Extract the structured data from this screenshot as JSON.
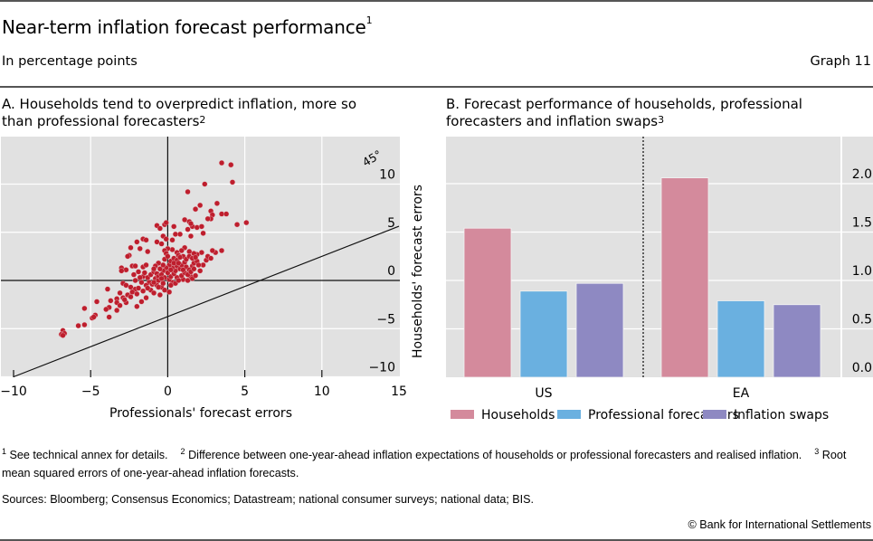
{
  "header": {
    "title": "Near-term inflation forecast performance",
    "title_footnote": "1",
    "subtitle": "In percentage points",
    "graph_number": "Graph 11"
  },
  "panel_a": {
    "title_line1": "A. Households tend to overpredict inflation, more so",
    "title_line2": "than professional forecasters",
    "title_footnote": "2"
  },
  "panel_b": {
    "title_line1": "B. Forecast performance of households, professional",
    "title_line2": "forecasters and inflation swaps",
    "title_footnote": "3"
  },
  "chart_data": [
    {
      "type": "scatter",
      "title": "A. Households tend to overpredict inflation, more so than professional forecasters",
      "xlabel": "Professionals' forecast errors",
      "ylabel": "Households' forecast errors",
      "xlim": [
        -10,
        15
      ],
      "ylim": [
        -10,
        15
      ],
      "x_ticks": [
        "−10",
        "−5",
        "0",
        "5",
        "10",
        "15"
      ],
      "y_ticks": [
        "−10",
        "−5",
        "0",
        "5",
        "10"
      ],
      "y_tick_values": [
        -10,
        -5,
        0,
        5,
        10
      ],
      "x_tick_values": [
        -10,
        -5,
        0,
        5,
        10,
        15
      ],
      "reference_line": {
        "label": "45°",
        "slope": 1,
        "intercept": 0
      },
      "grid": true,
      "marker_color": "#BE1E2D",
      "points": [
        [
          3.5,
          12.2
        ],
        [
          4.1,
          12.0
        ],
        [
          4.2,
          10.2
        ],
        [
          2.4,
          10.0
        ],
        [
          1.3,
          9.2
        ],
        [
          3.2,
          8.0
        ],
        [
          2.1,
          7.8
        ],
        [
          1.8,
          7.4
        ],
        [
          2.8,
          7.2
        ],
        [
          2.9,
          6.8
        ],
        [
          3.5,
          6.9
        ],
        [
          3.8,
          6.9
        ],
        [
          2.8,
          6.4
        ],
        [
          4.5,
          5.8
        ],
        [
          5.1,
          6.0
        ],
        [
          1.1,
          6.3
        ],
        [
          1.4,
          6.1
        ],
        [
          1.6,
          5.6
        ],
        [
          1.9,
          5.5
        ],
        [
          1.3,
          5.3
        ],
        [
          2.2,
          5.6
        ],
        [
          2.6,
          6.4
        ],
        [
          1.5,
          5.9
        ],
        [
          2.3,
          4.9
        ],
        [
          1.5,
          4.6
        ],
        [
          -0.7,
          5.7
        ],
        [
          -0.5,
          5.4
        ],
        [
          -0.2,
          5.8
        ],
        [
          -0.1,
          6.0
        ],
        [
          0.4,
          5.6
        ],
        [
          0.5,
          4.8
        ],
        [
          0.8,
          4.8
        ],
        [
          -0.3,
          4.6
        ],
        [
          -0.1,
          4.3
        ],
        [
          0.3,
          4.2
        ],
        [
          -1.6,
          4.3
        ],
        [
          -1.4,
          4.2
        ],
        [
          -2.0,
          4.0
        ],
        [
          -2.4,
          3.4
        ],
        [
          -1.8,
          3.3
        ],
        [
          -0.7,
          4.0
        ],
        [
          -0.4,
          3.8
        ],
        [
          -1.3,
          3.0
        ],
        [
          -2.5,
          2.6
        ],
        [
          -2.6,
          2.5
        ],
        [
          -3.0,
          1.3
        ],
        [
          -2.7,
          1.1
        ],
        [
          -2.3,
          1.5
        ],
        [
          -2.1,
          1.5
        ],
        [
          -1.6,
          1.4
        ],
        [
          -1.4,
          1.6
        ],
        [
          -1.9,
          0.9
        ],
        [
          -2.2,
          0.6
        ],
        [
          -3.0,
          1.0
        ],
        [
          -1.6,
          0.4
        ],
        [
          -1.3,
          0.3
        ],
        [
          -1.1,
          0.6
        ],
        [
          -0.9,
          0.9
        ],
        [
          -0.7,
          0.7
        ],
        [
          -0.8,
          0.2
        ],
        [
          -0.6,
          0.4
        ],
        [
          -1.2,
          -0.2
        ],
        [
          -1.4,
          -0.5
        ],
        [
          -1.0,
          -0.4
        ],
        [
          -2.9,
          -0.3
        ],
        [
          -2.7,
          -0.5
        ],
        [
          -2.4,
          -0.7
        ],
        [
          -2.1,
          -0.9
        ],
        [
          -1.9,
          -0.8
        ],
        [
          -2.3,
          -1.2
        ],
        [
          -2.0,
          -1.4
        ],
        [
          -2.6,
          -1.5
        ],
        [
          -2.9,
          -1.8
        ],
        [
          -3.1,
          -1.3
        ],
        [
          -3.9,
          -0.9
        ],
        [
          -3.3,
          -1.9
        ],
        [
          -3.7,
          -2.1
        ],
        [
          -3.3,
          -2.3
        ],
        [
          -3.1,
          -2.6
        ],
        [
          -3.8,
          -2.8
        ],
        [
          -4.0,
          -3.0
        ],
        [
          -3.3,
          -3.1
        ],
        [
          -2.7,
          -2.3
        ],
        [
          -2.8,
          -2.0
        ],
        [
          -4.6,
          -2.2
        ],
        [
          -5.4,
          -2.9
        ],
        [
          -4.7,
          -3.6
        ],
        [
          -4.9,
          -3.9
        ],
        [
          -4.8,
          -3.8
        ],
        [
          -3.8,
          -3.8
        ],
        [
          -2.4,
          -1.7
        ],
        [
          -1.7,
          -2.2
        ],
        [
          -1.4,
          -1.8
        ],
        [
          -2.0,
          -2.7
        ],
        [
          -5.4,
          -4.6
        ],
        [
          -5.8,
          -4.7
        ],
        [
          -6.8,
          -5.2
        ],
        [
          -6.9,
          -5.6
        ],
        [
          -6.7,
          -5.5
        ],
        [
          -6.8,
          -5.7
        ],
        [
          -1.1,
          -1.0
        ],
        [
          -0.7,
          -0.5
        ],
        [
          -0.4,
          -0.7
        ],
        [
          0.1,
          -1.2
        ],
        [
          -0.2,
          -1.0
        ],
        [
          -0.5,
          -1.5
        ],
        [
          0.3,
          -0.2
        ],
        [
          0.6,
          0.3
        ],
        [
          1.0,
          0.1
        ],
        [
          1.3,
          0.0
        ],
        [
          1.5,
          0.4
        ],
        [
          1.6,
          0.2
        ],
        [
          1.8,
          0.5
        ],
        [
          2.1,
          1.0
        ],
        [
          2.3,
          1.6
        ],
        [
          2.5,
          2.1
        ],
        [
          2.6,
          2.5
        ],
        [
          2.8,
          2.3
        ],
        [
          3.1,
          2.9
        ],
        [
          3.5,
          3.1
        ],
        [
          2.9,
          3.1
        ],
        [
          2.2,
          2.9
        ],
        [
          1.9,
          2.7
        ],
        [
          1.7,
          2.8
        ],
        [
          1.4,
          3.0
        ],
        [
          1.1,
          3.4
        ],
        [
          0.9,
          3.1
        ],
        [
          0.6,
          2.9
        ],
        [
          0.3,
          3.2
        ],
        [
          0.0,
          3.3
        ],
        [
          -0.2,
          3.1
        ],
        [
          -0.1,
          2.8
        ],
        [
          0.7,
          2.6
        ],
        [
          1.0,
          2.5
        ],
        [
          0.1,
          0.1
        ],
        [
          0.2,
          0.4
        ],
        [
          0.4,
          0.7
        ],
        [
          0.5,
          1.0
        ],
        [
          0.3,
          1.3
        ],
        [
          0.1,
          1.6
        ],
        [
          -0.1,
          1.3
        ],
        [
          -0.3,
          1.0
        ],
        [
          -0.5,
          1.2
        ],
        [
          -0.3,
          1.6
        ],
        [
          0.6,
          1.5
        ],
        [
          0.8,
          1.2
        ],
        [
          0.9,
          1.6
        ],
        [
          1.1,
          1.9
        ],
        [
          1.2,
          1.4
        ],
        [
          1.4,
          1.1
        ],
        [
          1.6,
          1.5
        ],
        [
          1.7,
          1.8
        ],
        [
          1.9,
          2.0
        ],
        [
          2.0,
          1.6
        ],
        [
          0.2,
          2.0
        ],
        [
          0.4,
          2.3
        ],
        [
          0.6,
          2.1
        ],
        [
          0.8,
          2.4
        ],
        [
          1.2,
          2.2
        ],
        [
          1.4,
          2.5
        ],
        [
          1.6,
          2.3
        ],
        [
          1.8,
          2.4
        ],
        [
          -0.2,
          2.2
        ],
        [
          0.0,
          2.5
        ],
        [
          -0.6,
          1.8
        ],
        [
          -0.8,
          1.5
        ],
        [
          -0.9,
          1.2
        ],
        [
          -0.4,
          0.6
        ],
        [
          -0.2,
          0.3
        ],
        [
          0.0,
          0.8
        ],
        [
          -0.6,
          0.0
        ],
        [
          -0.3,
          -0.3
        ],
        [
          0.2,
          -0.5
        ],
        [
          0.5,
          -0.3
        ],
        [
          0.7,
          0.0
        ],
        [
          0.9,
          0.5
        ],
        [
          1.1,
          0.8
        ],
        [
          1.3,
          0.6
        ],
        [
          1.5,
          0.9
        ],
        [
          1.7,
          1.2
        ],
        [
          0.4,
          1.8
        ],
        [
          0.7,
          1.8
        ],
        [
          1.0,
          1.1
        ],
        [
          0.2,
          1.1
        ],
        [
          -1.5,
          0.8
        ],
        [
          -1.8,
          0.3
        ],
        [
          -2.1,
          0.0
        ],
        [
          -1.7,
          -0.2
        ],
        [
          -1.3,
          -0.8
        ],
        [
          -0.9,
          -0.2
        ],
        [
          -0.6,
          -0.7
        ],
        [
          -0.9,
          -1.3
        ],
        [
          -1.6,
          -1.1
        ],
        [
          -0.4,
          0.2
        ]
      ]
    },
    {
      "type": "bar",
      "title": "B. Forecast performance of households, professional forecasters and inflation swaps",
      "categories": [
        "US",
        "EA"
      ],
      "series": [
        {
          "name": "Households",
          "color": "#D48A9C",
          "values": [
            1.54,
            2.06
          ]
        },
        {
          "name": "Professional forecasters",
          "color": "#6AB0E0",
          "values": [
            0.89,
            0.79
          ]
        },
        {
          "name": "Inflation swaps",
          "color": "#8E89C2",
          "values": [
            0.97,
            0.75
          ]
        }
      ],
      "ylim": [
        0,
        2.5
      ],
      "y_ticks": [
        "0.0",
        "0.5",
        "1.0",
        "1.5",
        "2.0"
      ],
      "y_tick_values": [
        0,
        0.5,
        1.0,
        1.5,
        2.0
      ],
      "grid": true,
      "legend": "bottom",
      "separator": "dashed vertical line between US and EA"
    }
  ],
  "footnotes": {
    "n1": "1",
    "t1": "See technical annex for details.",
    "n2": "2",
    "t2": "Difference between one-year-ahead inflation expectations of households or professional forecasters and realised inflation.",
    "n3": "3",
    "t3": "Root mean squared errors of one-year-ahead inflation forecasts."
  },
  "sources": "Sources: Bloomberg; Consensus Economics; Datastream; national consumer surveys; national data; BIS.",
  "copyright": "© Bank for International Settlements"
}
